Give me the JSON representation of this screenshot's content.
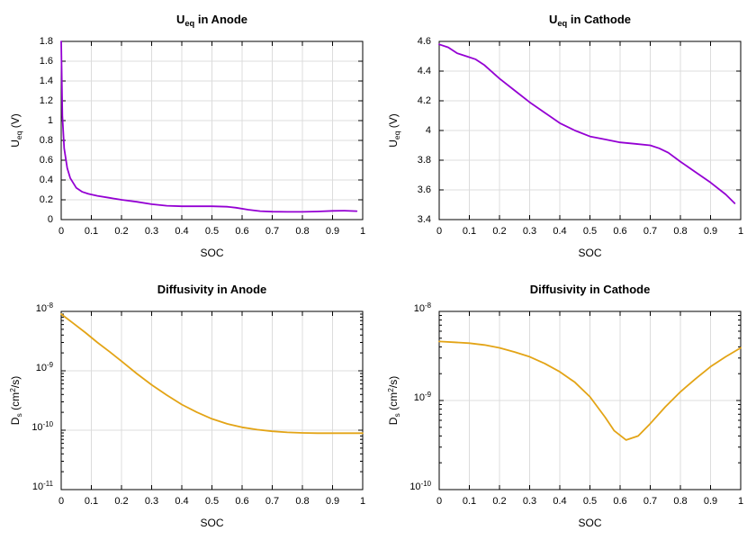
{
  "figure": {
    "background": "#ffffff",
    "grid_color": "#dcdcdc",
    "axis_color": "#000000"
  },
  "chart_data": [
    {
      "id": "ueq-anode",
      "type": "line",
      "title": "U_{eq} in Anode",
      "xlabel": "SOC",
      "ylabel": "U_{eq} (V)",
      "xlim": [
        0,
        1
      ],
      "ylim": [
        0,
        1.8
      ],
      "yscale": "linear",
      "grid": true,
      "legend": "none",
      "color": "#9400d3",
      "xticks": [
        0,
        0.1,
        0.2,
        0.3,
        0.4,
        0.5,
        0.6,
        0.7,
        0.8,
        0.9,
        1
      ],
      "xtick_labels": [
        "0",
        "0.1",
        "0.2",
        "0.3",
        "0.4",
        "0.5",
        "0.6",
        "0.7",
        "0.8",
        "0.9",
        "1"
      ],
      "yticks": [
        0,
        0.2,
        0.4,
        0.6,
        0.8,
        1,
        1.2,
        1.4,
        1.6,
        1.8
      ],
      "ytick_labels": [
        "0",
        "0.2",
        "0.4",
        "0.6",
        "0.8",
        "1",
        "1.2",
        "1.4",
        "1.6",
        "1.8"
      ],
      "x": [
        0,
        0.004,
        0.01,
        0.02,
        0.03,
        0.05,
        0.07,
        0.09,
        0.12,
        0.16,
        0.2,
        0.25,
        0.3,
        0.35,
        0.4,
        0.45,
        0.5,
        0.55,
        0.58,
        0.62,
        0.66,
        0.7,
        0.75,
        0.8,
        0.85,
        0.9,
        0.94,
        0.98
      ],
      "y": [
        1.8,
        1.05,
        0.72,
        0.52,
        0.42,
        0.32,
        0.28,
        0.26,
        0.24,
        0.22,
        0.2,
        0.18,
        0.155,
        0.14,
        0.135,
        0.135,
        0.135,
        0.13,
        0.12,
        0.1,
        0.085,
        0.08,
        0.078,
        0.078,
        0.082,
        0.088,
        0.09,
        0.085
      ]
    },
    {
      "id": "ueq-cathode",
      "type": "line",
      "title": "U_{eq} in Cathode",
      "xlabel": "SOC",
      "ylabel": "U_{eq} (V)",
      "xlim": [
        0,
        1
      ],
      "ylim": [
        3.4,
        4.6
      ],
      "yscale": "linear",
      "grid": true,
      "legend": "none",
      "color": "#9400d3",
      "xticks": [
        0,
        0.1,
        0.2,
        0.3,
        0.4,
        0.5,
        0.6,
        0.7,
        0.8,
        0.9,
        1
      ],
      "xtick_labels": [
        "0",
        "0.1",
        "0.2",
        "0.3",
        "0.4",
        "0.5",
        "0.6",
        "0.7",
        "0.8",
        "0.9",
        "1"
      ],
      "yticks": [
        3.4,
        3.6,
        3.8,
        4,
        4.2,
        4.4,
        4.6
      ],
      "ytick_labels": [
        "3.4",
        "3.6",
        "3.8",
        "4",
        "4.2",
        "4.4",
        "4.6"
      ],
      "x": [
        0,
        0.03,
        0.06,
        0.09,
        0.12,
        0.15,
        0.2,
        0.25,
        0.3,
        0.35,
        0.4,
        0.45,
        0.5,
        0.55,
        0.6,
        0.65,
        0.7,
        0.73,
        0.76,
        0.8,
        0.85,
        0.9,
        0.95,
        0.98
      ],
      "y": [
        4.58,
        4.56,
        4.52,
        4.5,
        4.48,
        4.44,
        4.35,
        4.27,
        4.19,
        4.12,
        4.05,
        4.0,
        3.96,
        3.94,
        3.92,
        3.91,
        3.9,
        3.88,
        3.85,
        3.79,
        3.72,
        3.65,
        3.57,
        3.51
      ]
    },
    {
      "id": "diffusivity-anode",
      "type": "line",
      "title": "Diffusivity in Anode",
      "xlabel": "SOC",
      "ylabel": "D_{s} (cm^{2}/s)",
      "xlim": [
        0,
        1
      ],
      "ylim": [
        1e-11,
        1e-08
      ],
      "yscale": "log",
      "grid": true,
      "legend": "none",
      "color": "#e3a416",
      "xticks": [
        0,
        0.1,
        0.2,
        0.3,
        0.4,
        0.5,
        0.6,
        0.7,
        0.8,
        0.9,
        1
      ],
      "xtick_labels": [
        "0",
        "0.1",
        "0.2",
        "0.3",
        "0.4",
        "0.5",
        "0.6",
        "0.7",
        "0.8",
        "0.9",
        "1"
      ],
      "yticks": [
        1e-11,
        1e-10,
        1e-09,
        1e-08
      ],
      "ytick_labels": [
        "10^{-11}",
        "10^{-10}",
        "10^{-9}",
        "10^{-8}"
      ],
      "x": [
        0,
        0.04,
        0.08,
        0.12,
        0.16,
        0.2,
        0.25,
        0.3,
        0.35,
        0.4,
        0.45,
        0.5,
        0.55,
        0.6,
        0.65,
        0.7,
        0.75,
        0.8,
        0.85,
        0.9,
        0.95,
        1
      ],
      "y": [
        9e-09,
        6.3e-09,
        4.4e-09,
        3e-09,
        2.1e-09,
        1.45e-09,
        9e-10,
        5.8e-10,
        3.9e-10,
        2.7e-10,
        2e-10,
        1.55e-10,
        1.28e-10,
        1.12e-10,
        1.02e-10,
        9.6e-11,
        9.2e-11,
        9e-11,
        8.9e-11,
        8.9e-11,
        8.9e-11,
        8.9e-11
      ]
    },
    {
      "id": "diffusivity-cathode",
      "type": "line",
      "title": "Diffusivity in Cathode",
      "xlabel": "SOC",
      "ylabel": "D_{s} (cm^{2}/s)",
      "xlim": [
        0,
        1
      ],
      "ylim": [
        1e-10,
        1e-08
      ],
      "yscale": "log",
      "grid": true,
      "legend": "none",
      "color": "#e3a416",
      "xticks": [
        0,
        0.1,
        0.2,
        0.3,
        0.4,
        0.5,
        0.6,
        0.7,
        0.8,
        0.9,
        1
      ],
      "xtick_labels": [
        "0",
        "0.1",
        "0.2",
        "0.3",
        "0.4",
        "0.5",
        "0.6",
        "0.7",
        "0.8",
        "0.9",
        "1"
      ],
      "yticks": [
        1e-10,
        1e-09,
        1e-08
      ],
      "ytick_labels": [
        "10^{-10}",
        "10^{-9}",
        "10^{-8}"
      ],
      "x": [
        0,
        0.05,
        0.1,
        0.15,
        0.2,
        0.25,
        0.3,
        0.35,
        0.4,
        0.45,
        0.5,
        0.55,
        0.58,
        0.62,
        0.66,
        0.7,
        0.75,
        0.8,
        0.85,
        0.9,
        0.95,
        1
      ],
      "y": [
        4.6e-09,
        4.5e-09,
        4.4e-09,
        4.2e-09,
        3.9e-09,
        3.5e-09,
        3.1e-09,
        2.6e-09,
        2.1e-09,
        1.6e-09,
        1.1e-09,
        6.5e-10,
        4.6e-10,
        3.6e-10,
        4e-10,
        5.5e-10,
        8.5e-10,
        1.25e-09,
        1.75e-09,
        2.4e-09,
        3.1e-09,
        3.9e-09
      ]
    }
  ]
}
